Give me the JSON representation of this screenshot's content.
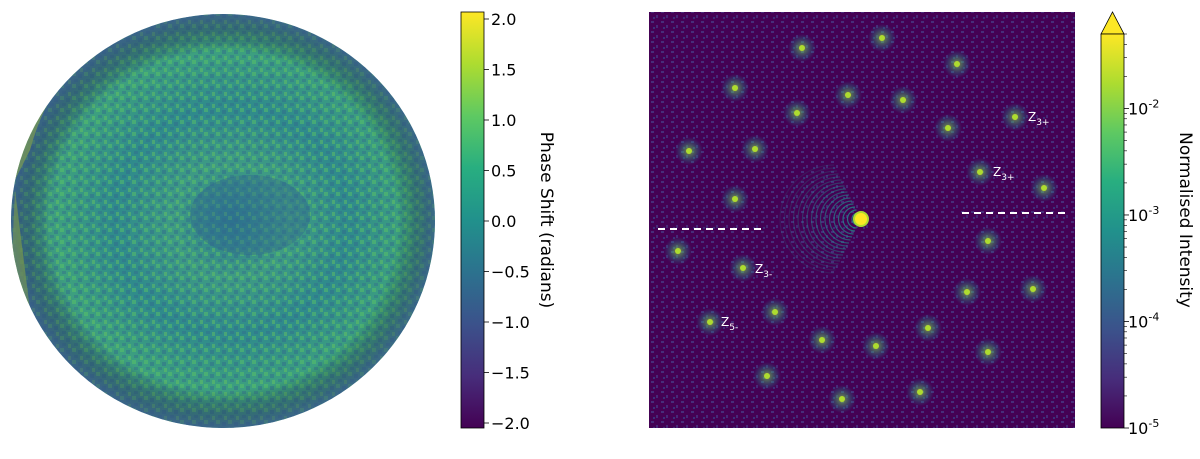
{
  "chart_data": [
    {
      "type": "heatmap",
      "description_panel": "pupil-phase-map",
      "colormap": "viridis",
      "colorbar": {
        "label": "Phase Shift (radians)",
        "range": [
          -2.0,
          2.0
        ],
        "scale": "linear",
        "ticks": [
          2.0,
          1.5,
          1.0,
          0.5,
          0.0,
          -0.5,
          -1.0,
          -1.5,
          -2.0
        ],
        "tick_labels": [
          "2.0",
          "1.5",
          "1.0",
          "0.5",
          "0.0",
          "−0.5",
          "−1.0",
          "−1.5",
          "−2.0"
        ]
      },
      "grid": false,
      "legend": "none"
    },
    {
      "type": "heatmap",
      "description_panel": "psf-intensity-map",
      "colormap": "viridis",
      "colorbar": {
        "label": "Normalised Intensity",
        "range": [
          1e-05,
          0.05
        ],
        "scale": "log",
        "extend": "max",
        "ticks": [
          0.01,
          0.001,
          0.0001,
          1e-05
        ],
        "tick_bases": [
          "10",
          "10",
          "10",
          "10"
        ],
        "tick_exponents": [
          "-2",
          "-3",
          "-4",
          "-5"
        ]
      },
      "annotations": [
        {
          "base": "Z",
          "sub": "3+",
          "label": "Z3+ (upper)"
        },
        {
          "base": "Z",
          "sub": "3+",
          "label": "Z3+ (lower)"
        },
        {
          "base": "Z",
          "sub": "3-",
          "label": "Z3-"
        },
        {
          "base": "Z",
          "sub": "5-",
          "label": "Z5-"
        }
      ],
      "grid": false,
      "legend": "none"
    }
  ]
}
